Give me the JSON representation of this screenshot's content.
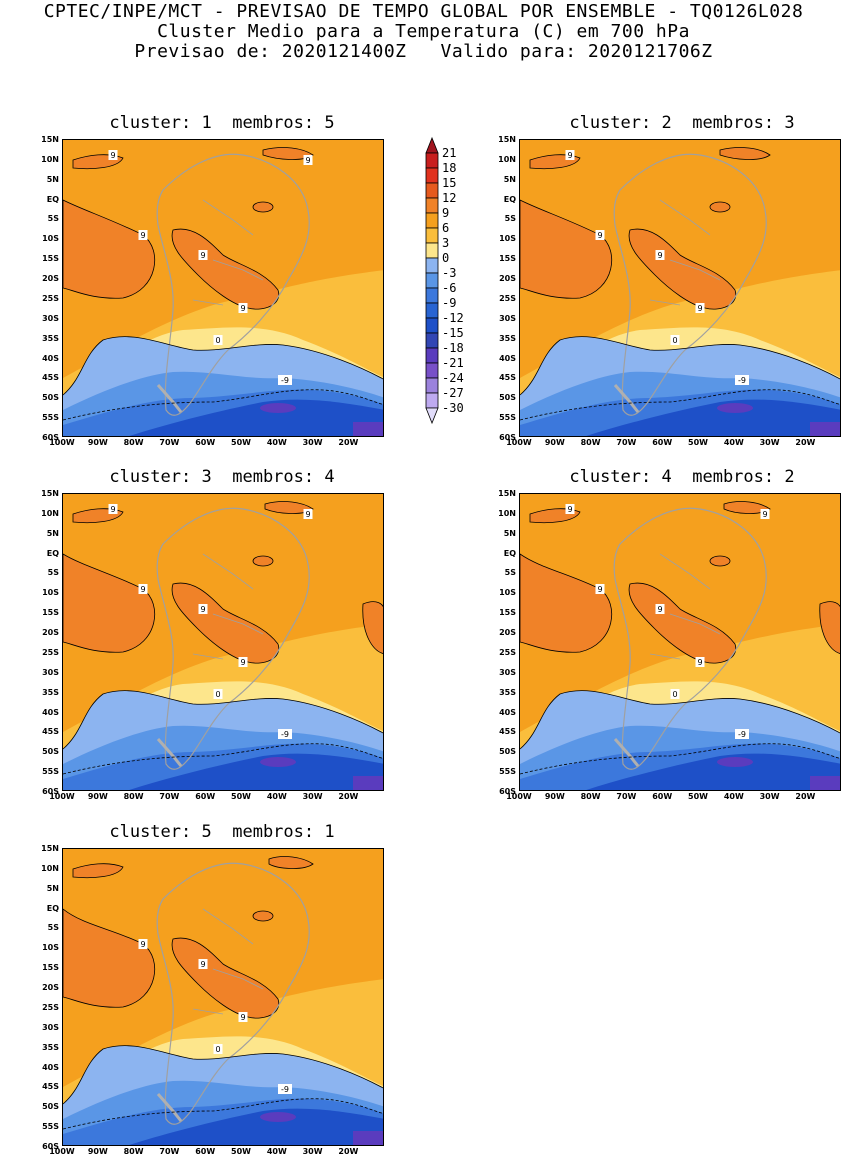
{
  "header": {
    "line1": "CPTEC/INPE/MCT - PREVISAO DE TEMPO GLOBAL POR ENSEMBLE - TQ0126L028",
    "line2": "Cluster Medio para a Temperatura (C) em 700 hPa",
    "line3": "Previsao de: 2020121400Z   Valido para: 2020121706Z"
  },
  "axes": {
    "lat_labels": [
      "15N",
      "10N",
      "5N",
      "EQ",
      "5S",
      "10S",
      "15S",
      "20S",
      "25S",
      "30S",
      "35S",
      "40S",
      "45S",
      "50S",
      "55S",
      "60S"
    ],
    "lon_labels": [
      "100W",
      "90W",
      "80W",
      "70W",
      "60W",
      "50W",
      "40W",
      "30W",
      "20W"
    ]
  },
  "colorbar": {
    "labels": [
      "21",
      "18",
      "15",
      "12",
      "9",
      "6",
      "3",
      "0",
      "-3",
      "-6",
      "-9",
      "-12",
      "-15",
      "-18",
      "-21",
      "-24",
      "-27",
      "-30"
    ],
    "colors": [
      "#a0141e",
      "#c81e1e",
      "#e1321e",
      "#e65a1e",
      "#f08228",
      "#f5a01e",
      "#fabe3c",
      "#fde68c",
      "#8cb4f0",
      "#5a96e6",
      "#3c78dc",
      "#2864d2",
      "#1e50c8",
      "#3246b4",
      "#5a3cbe",
      "#7850c8",
      "#9b82dc",
      "#beaaf0",
      "#e1dcfa"
    ]
  },
  "clusters": [
    {
      "cluster_label": "cluster:",
      "cluster_num": "1",
      "members_label": "membros:",
      "members_num": "5",
      "contours": [
        "9",
        "9",
        "9",
        "9",
        "9",
        "0",
        "-9"
      ]
    },
    {
      "cluster_label": "cluster:",
      "cluster_num": "2",
      "members_label": "membros:",
      "members_num": "3",
      "contours": [
        "9",
        "9",
        "9",
        "9",
        "0",
        "-9"
      ]
    },
    {
      "cluster_label": "cluster:",
      "cluster_num": "3",
      "members_label": "membros:",
      "members_num": "4",
      "contours": [
        "9",
        "9",
        "9",
        "9",
        "9",
        "0",
        "-9"
      ]
    },
    {
      "cluster_label": "cluster:",
      "cluster_num": "4",
      "members_label": "membros:",
      "members_num": "2",
      "contours": [
        "9",
        "9",
        "9",
        "9",
        "9",
        "0",
        "-9"
      ]
    },
    {
      "cluster_label": "cluster:",
      "cluster_num": "5",
      "members_label": "membros:",
      "members_num": "1",
      "contours": [
        "9",
        "9",
        "9",
        "0",
        "-9"
      ]
    }
  ]
}
